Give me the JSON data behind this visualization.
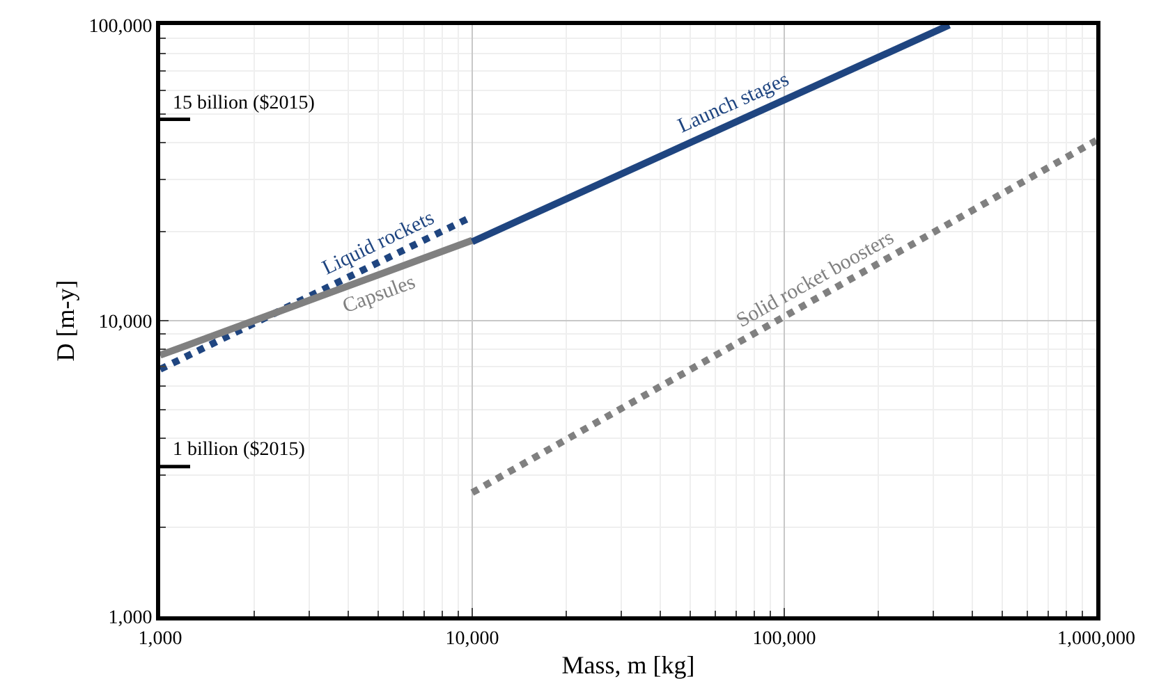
{
  "chart_data": {
    "type": "line",
    "xlabel": "Mass, m [kg]",
    "ylabel": "D [m-y]",
    "log": "xy",
    "grid": true,
    "legend": false,
    "xlim": [
      1000,
      1000000
    ],
    "xticks": [
      {
        "value": 1000,
        "label": "1,000"
      },
      {
        "value": 10000,
        "label": "10,000"
      },
      {
        "value": 100000,
        "label": "100,000"
      },
      {
        "value": 1000000,
        "label": "1,000,000"
      }
    ],
    "ylim": [
      1000,
      100000
    ],
    "yticks": [
      {
        "value": 1000,
        "label": "1,000"
      },
      {
        "value": 10000,
        "label": "10,000"
      },
      {
        "value": 100000,
        "label": "100,000"
      }
    ],
    "series": [
      {
        "name": "Liquid rockets",
        "color": "#1f4580",
        "line_style": "dotted",
        "x": [
          1000,
          10000
        ],
        "values": [
          6850,
          22500
        ]
      },
      {
        "name": "Capsules",
        "color": "#808080",
        "line_style": "solid",
        "x": [
          1000,
          10000
        ],
        "values": [
          7640,
          18700
        ]
      },
      {
        "name": "Launch stages",
        "color": "#1f4580",
        "line_style": "solid",
        "x": [
          10000,
          338000
        ],
        "values": [
          18500,
          100000
        ]
      },
      {
        "name": "Solid rocket boosters",
        "color": "#808080",
        "line_style": "dotted",
        "x": [
          10000,
          1000000
        ],
        "values": [
          2620,
          40700
        ]
      }
    ],
    "ref_lines": [
      {
        "axis": "y",
        "value": 48000,
        "label": "15 billion ($2015)",
        "color": "#000000"
      },
      {
        "axis": "y",
        "value": 3210,
        "label": "1 billion ($2015)",
        "color": "#000000"
      }
    ]
  }
}
